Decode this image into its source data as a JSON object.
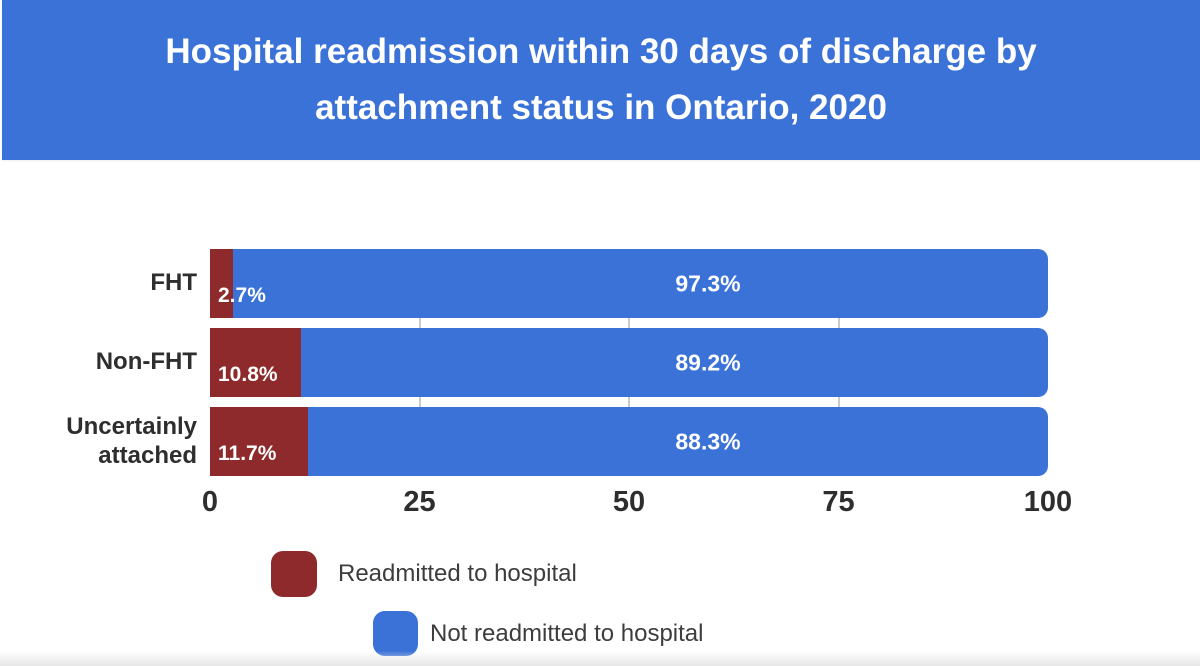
{
  "banner": {
    "title_line1": "Hospital readmission within 30 days of discharge by",
    "title_line2": "attachment status in Ontario, 2020",
    "bg_color": "#3b72d8",
    "text_color": "#ffffff"
  },
  "chart_data": {
    "type": "bar",
    "orientation": "horizontal",
    "stacked": true,
    "title": "Hospital readmission within 30 days of discharge by attachment status in Ontario, 2020",
    "categories": [
      "FHT",
      "Non-FHT",
      "Uncertainly attached"
    ],
    "series": [
      {
        "name": "Readmitted to hospital",
        "color": "#8e2a2b",
        "values": [
          2.7,
          10.8,
          11.7
        ],
        "labels": [
          "2.7%",
          "10.8%",
          "11.7%"
        ]
      },
      {
        "name": "Not readmitted to hospital",
        "color": "#3b72d8",
        "values": [
          97.3,
          89.2,
          88.3
        ],
        "labels": [
          "97.3%",
          "89.2%",
          "88.3%"
        ]
      }
    ],
    "xlabel": "",
    "ylabel": "",
    "xlim": [
      0,
      100
    ],
    "x_ticks": [
      0,
      25,
      50,
      75,
      100
    ],
    "gridline_values": [
      25,
      50,
      75
    ],
    "grid": true,
    "legend_position": "bottom"
  },
  "legend": {
    "items": [
      {
        "label": "Readmitted to hospital",
        "color": "#8e2a2b"
      },
      {
        "label": "Not readmitted to hospital",
        "color": "#3b72d8"
      }
    ]
  },
  "colors": {
    "axis_text": "#2e2e2e",
    "gridline": "#cbcbcb",
    "background": "#ffffff"
  }
}
